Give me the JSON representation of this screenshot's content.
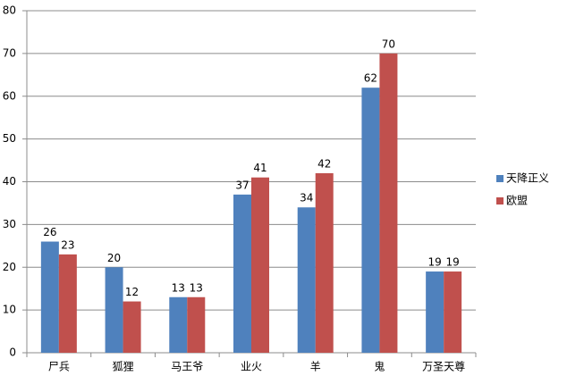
{
  "chart_data": {
    "type": "bar",
    "categories": [
      "尸兵",
      "狐狸",
      "马王爷",
      "业火",
      "羊",
      "鬼",
      "万圣天尊"
    ],
    "series": [
      {
        "name": "天降正义",
        "color": "#4f81bd",
        "values": [
          26,
          20,
          13,
          37,
          34,
          62,
          19
        ]
      },
      {
        "name": "欧盟",
        "color": "#c0504d",
        "values": [
          23,
          12,
          13,
          41,
          42,
          70,
          19
        ]
      }
    ],
    "ylim": [
      0,
      80
    ],
    "yticks": [
      0,
      10,
      20,
      30,
      40,
      50,
      60,
      70,
      80
    ],
    "grid": true,
    "legend": "right",
    "data_labels": true
  }
}
